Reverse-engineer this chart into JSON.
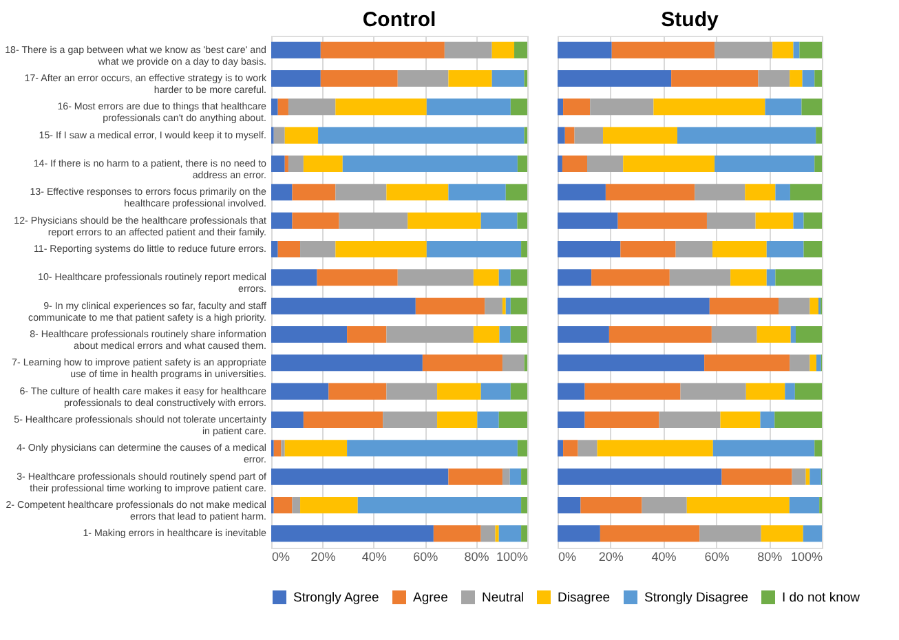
{
  "chart_data": [
    {
      "type": "bar",
      "orientation": "horizontal",
      "stacked": true,
      "title": "Control",
      "legend": "bottom",
      "grid": "x",
      "xlim": [
        0,
        100
      ],
      "xticks": [
        {
          "value": 0,
          "label": "0%"
        },
        {
          "value": 20,
          "label": "20%"
        },
        {
          "value": 40,
          "label": "40%"
        },
        {
          "value": 60,
          "label": "60%"
        },
        {
          "value": 80,
          "label": "80%"
        },
        {
          "value": 100,
          "label": "100%"
        }
      ],
      "categories": [
        "18- There is a gap between what we know as 'best care' and what we provide on a day to day basis.",
        "17- After an error occurs, an effective strategy is to work harder to be more careful.",
        "16- Most errors are due to things that healthcare professionals can't do anything about.",
        "15- If I saw a medical error, I would keep it to myself.",
        "14- If there is no harm to a patient, there is no need to address an error.",
        "13- Effective responses to errors focus primarily on the healthcare professional involved.",
        "12- Physicians should be the healthcare professionals that report errors to an affected patient and their family.",
        "11- Reporting systems do little to reduce future errors.",
        "10- Healthcare professionals routinely report medical errors.",
        "9- In my clinical experiences so far, faculty and staff communicate to me that patient safety is a high priority.",
        "8- Healthcare professionals routinely share information about medical errors and what caused them.",
        "7- Learning how to improve patient safety is an appropriate use of time in health programs in universities.",
        "6- The culture of health care makes it easy for healthcare professionals to deal constructively with errors.",
        "5- Healthcare professionals should not tolerate uncertainty in patient care.",
        "4- Only physicians can determine the causes of a medical error.",
        "3- Healthcare professionals should routinely spend part of their professional time working to improve patient care.",
        "2- Competent healthcare professionals do not make medical errors that lead to patient harm.",
        "1- Making errors in healthcare is inevitable"
      ],
      "series": [
        {
          "name": "Strongly Agree",
          "color": "#4472c4",
          "values": [
            19.3,
            19.3,
            2.6,
            1.0,
            5.3,
            8.2,
            8.2,
            2.6,
            17.9,
            56.4,
            29.6,
            59.1,
            22.4,
            12.6,
            1.0,
            69.2,
            1.0,
            63.4
          ]
        },
        {
          "name": "Agree",
          "color": "#ed7d31",
          "values": [
            48.4,
            30.1,
            4.1,
            0,
            1.4,
            16.9,
            18.3,
            8.7,
            31.5,
            27.0,
            15.4,
            31.2,
            22.6,
            31.0,
            2.9,
            21.1,
            7.2,
            18.5
          ]
        },
        {
          "name": "Neutral",
          "color": "#a5a5a5",
          "values": [
            18.5,
            19.8,
            18.4,
            4.3,
            5.9,
            19.9,
            26.8,
            13.8,
            29.6,
            6.9,
            34.0,
            8.5,
            19.8,
            21.2,
            1.4,
            2.9,
            3.1,
            5.6
          ]
        },
        {
          "name": "Disagree",
          "color": "#ffc000",
          "values": [
            8.7,
            17.0,
            35.6,
            13.0,
            15.3,
            24.2,
            28.6,
            35.6,
            9.9,
            1.3,
            10.1,
            0,
            17.1,
            15.7,
            24.3,
            0,
            22.5,
            1.4
          ]
        },
        {
          "name": "Strongly Disagree",
          "color": "#5b9bd5",
          "values": [
            0,
            12.6,
            32.8,
            80.5,
            68.3,
            22.4,
            14.2,
            36.9,
            4.6,
            1.9,
            4.4,
            0,
            11.6,
            8.4,
            66.6,
            4.4,
            63.8,
            8.7
          ]
        },
        {
          "name": "I do not know",
          "color": "#70ad47",
          "values": [
            5.1,
            1.2,
            6.5,
            1.2,
            3.8,
            8.4,
            3.9,
            2.4,
            6.5,
            6.5,
            6.5,
            1.2,
            6.5,
            11.1,
            3.8,
            2.4,
            2.4,
            2.4
          ]
        }
      ]
    },
    {
      "type": "bar",
      "orientation": "horizontal",
      "stacked": true,
      "title": "Study",
      "legend": "bottom",
      "grid": "x",
      "tick_labels": "x",
      "xlim": [
        0,
        100
      ],
      "categories": [
        null,
        null,
        null,
        null,
        null,
        null,
        null,
        null,
        null,
        null,
        null,
        null,
        null,
        null,
        null,
        null,
        null,
        null
      ],
      "xticks": [
        {
          "value": 0,
          "label": "0%"
        },
        {
          "value": 20,
          "label": "20%"
        },
        {
          "value": 40,
          "label": "40%"
        },
        {
          "value": 60,
          "label": "60%"
        },
        {
          "value": 80,
          "label": "80%"
        },
        {
          "value": 100,
          "label": "100%"
        }
      ],
      "series": [
        {
          "name": "Strongly Agree",
          "color": "#4472c4",
          "values": [
            20.5,
            43.0,
            2.1,
            2.8,
            1.8,
            18.2,
            22.8,
            23.8,
            12.8,
            57.5,
            19.5,
            55.5,
            10.3,
            10.3,
            2.1,
            62.1,
            8.7,
            16.1
          ]
        },
        {
          "name": "Agree",
          "color": "#ed7d31",
          "values": [
            38.9,
            32.9,
            10.2,
            3.6,
            9.4,
            33.7,
            33.7,
            20.9,
            29.6,
            26.1,
            38.8,
            32.3,
            36.2,
            28.1,
            5.6,
            26.6,
            23.2,
            37.6
          ]
        },
        {
          "name": "Neutral",
          "color": "#a5a5a5",
          "values": [
            21.9,
            11.9,
            24.0,
            10.8,
            13.6,
            19.0,
            18.4,
            13.9,
            23.0,
            11.8,
            17.1,
            7.6,
            24.8,
            23.2,
            7.3,
            5.2,
            17.0,
            23.3
          ]
        },
        {
          "name": "Disagree",
          "color": "#ffc000",
          "values": [
            7.9,
            4.8,
            42.2,
            28.1,
            34.6,
            11.5,
            14.3,
            20.5,
            13.7,
            3.3,
            12.8,
            2.5,
            14.7,
            15.1,
            43.8,
            1.5,
            38.8,
            15.9
          ]
        },
        {
          "name": "Strongly Disagree",
          "color": "#5b9bd5",
          "values": [
            2.3,
            4.6,
            13.8,
            52.4,
            37.8,
            5.6,
            3.9,
            14.0,
            3.3,
            0.8,
            1.9,
            1.8,
            3.8,
            5.4,
            38.4,
            4.3,
            11.3,
            7.1
          ]
        },
        {
          "name": "I do not know",
          "color": "#70ad47",
          "values": [
            8.5,
            2.8,
            7.7,
            2.3,
            2.8,
            12.0,
            6.9,
            6.9,
            17.6,
            0.5,
            9.9,
            0.3,
            10.2,
            17.9,
            2.8,
            0.3,
            1.0,
            0
          ]
        }
      ]
    }
  ]
}
